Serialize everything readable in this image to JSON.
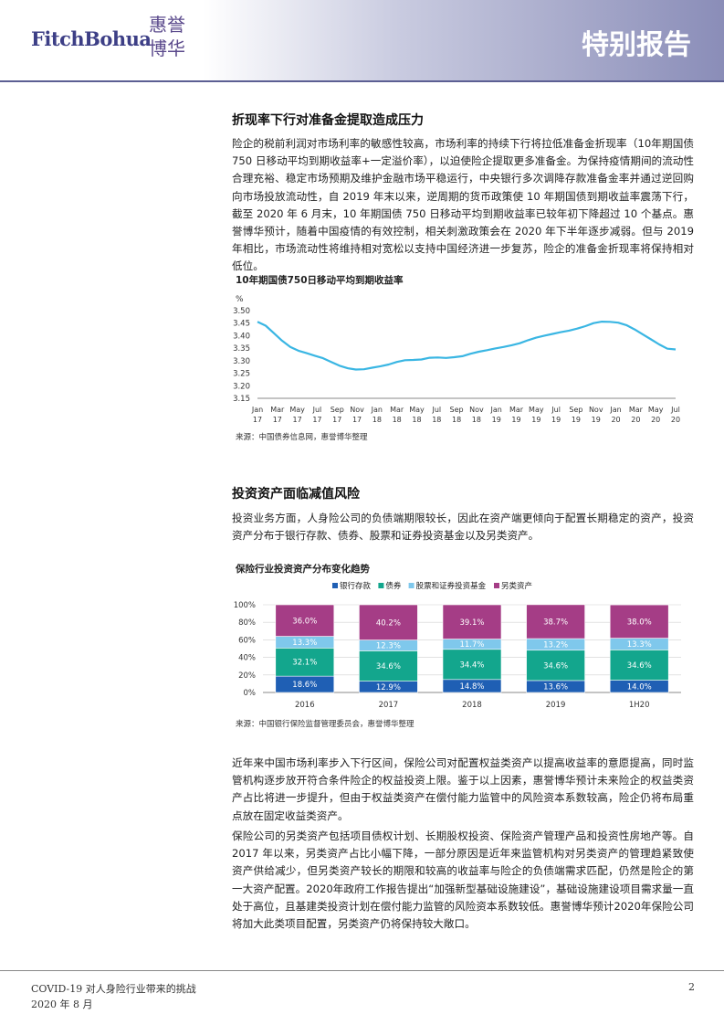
{
  "header": {
    "logo_latin": "FitchBohua",
    "logo_cjk": "惠誉博华",
    "report_type": "特别报告"
  },
  "section1": {
    "title": "折现率下行对准备金提取造成压力",
    "paragraph": "险企的税前利润对市场利率的敏感性较高，市场利率的持续下行将拉低准备金折现率（10年期国债 750 日移动平均到期收益率+一定溢价率），以迫使险企提取更多准备金。为保持疫情期间的流动性合理充裕、稳定市场预期及维护金融市场平稳运行，中央银行多次调降存款准备金率并通过逆回购向市场投放流动性，自 2019 年末以来，逆周期的货币政策使 10 年期国债到期收益率震荡下行，截至 2020 年 6 月末，10 年期国债 750 日移动平均到期收益率已较年初下降超过 10 个基点。惠誉博华预计，随着中国疫情的有效控制，相关刺激政策会在 2020 年下半年逐步减弱。但与 2019 年相比，市场流动性将维持相对宽松以支持中国经济进一步复苏，险企的准备金折现率将保持相对低位。"
  },
  "figure1": {
    "caption": "10年期国债750日移动平均到期收益率",
    "source": "来源：中国债券信息网，惠誉博华整理"
  },
  "section2": {
    "title": "投资资产面临减值风险",
    "paragraph": "投资业务方面，人身险公司的负债端期限较长，因此在资产端更倾向于配置长期稳定的资产，投资资产分布于银行存款、债券、股票和证券投资基金以及另类资产。"
  },
  "figure2": {
    "caption": "保险行业投资资产分布变化趋势",
    "source": "来源：中国银行保险监督管理委员会，惠誉博华整理"
  },
  "paragraph3": "近年来中国市场利率步入下行区间，保险公司对配置权益类资产以提高收益率的意愿提高，同时监管机构逐步放开符合条件险企的权益投资上限。鉴于以上因素，惠誉博华预计未来险企的权益类资产占比将进一步提升，但由于权益类资产在偿付能力监管中的风险资本系数较高，险企仍将布局重点放在固定收益类资产。",
  "paragraph4": "保险公司的另类资产包括项目债权计划、长期股权投资、保险资产管理产品和投资性房地产等。自 2017 年以来，另类资产占比小幅下降，一部分原因是近年来监管机构对另类资产的管理趋紧致使资产供给减少，但另类资产较长的期限和较高的收益率与险企的负债端需求匹配，仍然是险企的第一大资产配置。2020年政府工作报告提出“加强新型基础设施建设”，基础设施建设项目需求量一直处于高位，且基建类投资计划在偿付能力监管的风险资本系数较低。惠誉博华预计2020年保险公司将加大此类项目配置，另类资产仍将保持较大敞口。",
  "footer": {
    "doc_title": "COVID-19 对人身险行业带来的挑战",
    "date": "2020 年 8 月",
    "page": "2"
  },
  "chart_data": [
    {
      "type": "line",
      "ylabel": "%",
      "ylim": [
        3.15,
        3.5
      ],
      "yticks": [
        "3.50",
        "3.45",
        "3.40",
        "3.35",
        "3.30",
        "3.25",
        "3.20",
        "3.15"
      ],
      "tick_month": [
        "Jan",
        "Mar",
        "May",
        "Jul",
        "Sep",
        "Nov",
        "Jan",
        "Mar",
        "May",
        "Jul",
        "Sep",
        "Nov",
        "Jan",
        "Mar",
        "May",
        "Jul",
        "Sep",
        "Nov",
        "Jan",
        "Mar",
        "May",
        "Jul"
      ],
      "tick_year": [
        "17",
        "17",
        "17",
        "17",
        "17",
        "17",
        "18",
        "18",
        "18",
        "18",
        "18",
        "18",
        "19",
        "19",
        "19",
        "19",
        "19",
        "19",
        "20",
        "20",
        "20",
        "20"
      ],
      "series_color": "#3ab6e3",
      "values": [
        3.455,
        3.44,
        3.41,
        3.38,
        3.355,
        3.34,
        3.33,
        3.32,
        3.31,
        3.295,
        3.28,
        3.27,
        3.265,
        3.266,
        3.272,
        3.278,
        3.285,
        3.295,
        3.302,
        3.303,
        3.305,
        3.312,
        3.313,
        3.311,
        3.314,
        3.318,
        3.328,
        3.336,
        3.342,
        3.349,
        3.355,
        3.362,
        3.37,
        3.382,
        3.392,
        3.4,
        3.407,
        3.414,
        3.42,
        3.428,
        3.438,
        3.45,
        3.456,
        3.455,
        3.452,
        3.442,
        3.425,
        3.405,
        3.385,
        3.365,
        3.348,
        3.345
      ]
    },
    {
      "type": "bar",
      "stacked": true,
      "categories": [
        "2016",
        "2017",
        "2018",
        "2019",
        "1H20"
      ],
      "yticks": [
        "100%",
        "80%",
        "60%",
        "40%",
        "20%",
        "0%"
      ],
      "ylim": [
        0,
        100
      ],
      "legend_position": "top",
      "series": [
        {
          "name": "银行存款",
          "color": "#1f5fb4",
          "values": [
            18.6,
            12.9,
            14.8,
            13.6,
            14.0
          ],
          "labels": [
            "18.6%",
            "12.9%",
            "14.8%",
            "13.6%",
            "14.0%"
          ]
        },
        {
          "name": "债券",
          "color": "#13a68d",
          "values": [
            32.1,
            34.6,
            34.4,
            34.6,
            34.6
          ],
          "labels": [
            "32.1%",
            "34.6%",
            "34.4%",
            "34.6%",
            "34.6%"
          ]
        },
        {
          "name": "股票和证券投资基金",
          "color": "#7fc8ec",
          "values": [
            13.3,
            12.3,
            11.7,
            13.2,
            13.3
          ],
          "labels": [
            "13.3%",
            "12.3%",
            "11.7%",
            "13.2%",
            "13.3%"
          ]
        },
        {
          "name": "另类资产",
          "color": "#a53d86",
          "values": [
            36.0,
            40.2,
            39.1,
            38.7,
            38.0
          ],
          "labels": [
            "36.0%",
            "40.2%",
            "39.1%",
            "38.7%",
            "38.0%"
          ]
        }
      ]
    }
  ]
}
